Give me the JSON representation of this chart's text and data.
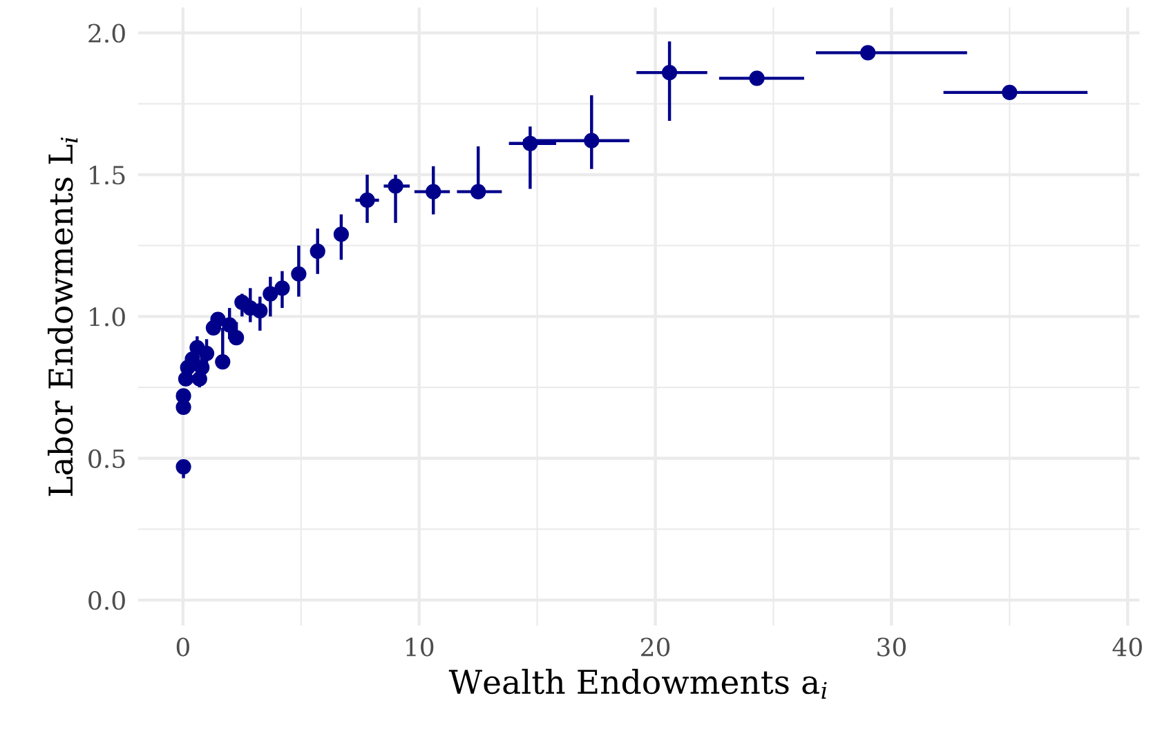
{
  "chart_data": {
    "type": "scatter",
    "xlabel": "Wealth Endowments a$_{i}$",
    "ylabel": "Labor Endowments L$_{i}$",
    "x": [
      0.02,
      0.02,
      0.02,
      0.12,
      0.2,
      0.4,
      0.6,
      0.7,
      0.8,
      1.0,
      1.29,
      1.48,
      1.68,
      1.97,
      2.26,
      2.5,
      2.85,
      3.26,
      3.7,
      4.2,
      4.9,
      5.7,
      6.7,
      7.8,
      9.0,
      10.6,
      12.5,
      14.7,
      17.3,
      20.6,
      24.3,
      29.0,
      35.0
    ],
    "series": [
      {
        "color": "#00008b",
        "values": [
          0.47,
          0.68,
          0.72,
          0.78,
          0.82,
          0.85,
          0.89,
          0.78,
          0.82,
          0.87,
          0.96,
          0.99,
          0.84,
          0.97,
          0.925,
          1.05,
          1.03,
          1.02,
          1.08,
          1.1,
          1.15,
          1.23,
          1.29,
          1.41,
          1.46,
          1.44,
          1.44,
          1.61,
          1.62,
          1.86,
          1.84,
          1.93,
          1.79
        ],
        "errors": [
          [
            0.43,
            0.47
          ],
          null,
          null,
          null,
          null,
          null,
          [
            0.85,
            0.93
          ],
          [
            0.75,
            0.82
          ],
          [
            0.78,
            0.87
          ],
          [
            0.82,
            0.92
          ],
          null,
          null,
          [
            0.82,
            0.96
          ],
          [
            0.92,
            1.03
          ],
          [
            0.9,
            0.98
          ],
          [
            1.0,
            1.08
          ],
          [
            0.98,
            1.1
          ],
          [
            0.95,
            1.07
          ],
          [
            1.0,
            1.14
          ],
          [
            1.03,
            1.16
          ],
          [
            1.07,
            1.25
          ],
          [
            1.15,
            1.31
          ],
          [
            1.2,
            1.36
          ],
          [
            1.33,
            1.5
          ],
          [
            1.33,
            1.5
          ],
          [
            1.36,
            1.53
          ],
          [
            1.42,
            1.6
          ],
          [
            1.45,
            1.67
          ],
          [
            1.52,
            1.78
          ],
          [
            1.69,
            1.97
          ],
          null,
          null,
          null
        ],
        "xerrors": [
          null,
          null,
          null,
          null,
          null,
          null,
          null,
          null,
          null,
          null,
          null,
          null,
          null,
          null,
          null,
          null,
          null,
          null,
          null,
          null,
          null,
          null,
          null,
          [
            7.3,
            8.3
          ],
          [
            8.5,
            9.6
          ],
          [
            9.8,
            11.3
          ],
          [
            11.6,
            13.5
          ],
          [
            13.8,
            15.8
          ],
          [
            14.4,
            18.9
          ],
          [
            19.2,
            22.2
          ],
          [
            22.7,
            26.3
          ],
          [
            26.8,
            33.2
          ],
          [
            32.2,
            38.3
          ]
        ]
      }
    ],
    "marker": "circle",
    "grid": true,
    "xlim": [
      -1.9,
      40.5
    ],
    "ylim": [
      -0.09,
      2.09
    ],
    "xticks": [
      0,
      10,
      20,
      30,
      40
    ],
    "yticks": [
      {
        "value": 0,
        "label": "0.0"
      },
      {
        "value": 0.5,
        "label": "0.5"
      },
      {
        "value": 1,
        "label": "1.0"
      },
      {
        "value": 1.5,
        "label": "1.5"
      },
      {
        "value": 2,
        "label": "2.0"
      }
    ]
  }
}
